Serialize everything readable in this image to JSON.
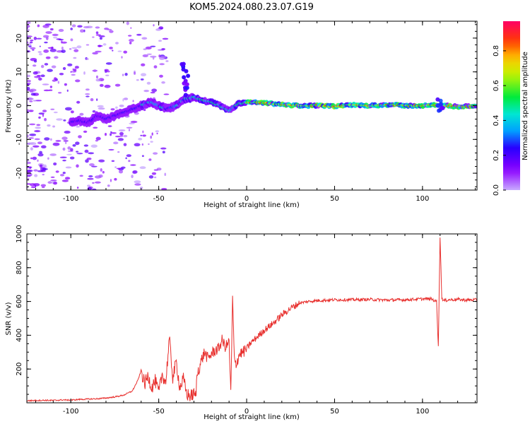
{
  "figure": {
    "title": "KOM5.2024.080.23.07.G19"
  },
  "colors": {
    "snr_line": "#e8302e",
    "axis": "#000000",
    "background": "#ffffff"
  },
  "chart_data": [
    {
      "type": "heatmap",
      "name": "spectrogram",
      "xlabel": "Height of straight line (km)",
      "ylabel": "Frequency (Hz)",
      "xlim": [
        -125,
        131
      ],
      "ylim": [
        -25,
        25
      ],
      "x_ticks": [
        -100,
        -50,
        0,
        50,
        100
      ],
      "y_ticks": [
        -20,
        -10,
        0,
        10,
        20
      ],
      "colorbar": {
        "label": "Normalized spectral amplitude",
        "range": [
          0,
          0.97
        ],
        "ticks": [
          0.0,
          0.2,
          0.4,
          0.6,
          0.8
        ],
        "colormap": "gist_rainbow_r"
      },
      "ridge": [
        {
          "x": -100,
          "y": -5
        },
        {
          "x": -95,
          "y": -4.5
        },
        {
          "x": -90,
          "y": -5
        },
        {
          "x": -85,
          "y": -3
        },
        {
          "x": -80,
          "y": -4
        },
        {
          "x": -75,
          "y": -3
        },
        {
          "x": -70,
          "y": -2
        },
        {
          "x": -65,
          "y": -1
        },
        {
          "x": -60,
          "y": 0
        },
        {
          "x": -55,
          "y": 1
        },
        {
          "x": -50,
          "y": 0
        },
        {
          "x": -45,
          "y": -1
        },
        {
          "x": -40,
          "y": 0
        },
        {
          "x": -35,
          "y": 2
        },
        {
          "x": -30,
          "y": 2.5
        },
        {
          "x": -25,
          "y": 1.5
        },
        {
          "x": -20,
          "y": 1
        },
        {
          "x": -15,
          "y": 0
        },
        {
          "x": -10,
          "y": -1.5
        },
        {
          "x": -5,
          "y": 0.5
        },
        {
          "x": 0,
          "y": 1
        },
        {
          "x": 10,
          "y": 0.8
        },
        {
          "x": 20,
          "y": 0.3
        },
        {
          "x": 30,
          "y": 0
        },
        {
          "x": 40,
          "y": 0
        },
        {
          "x": 50,
          "y": -0.2
        },
        {
          "x": 60,
          "y": 0.2
        },
        {
          "x": 70,
          "y": 0
        },
        {
          "x": 80,
          "y": 0.3
        },
        {
          "x": 90,
          "y": 0
        },
        {
          "x": 100,
          "y": 0
        },
        {
          "x": 110,
          "y": 0.2
        },
        {
          "x": 120,
          "y": -0.3
        },
        {
          "x": 131,
          "y": 0
        }
      ]
    },
    {
      "type": "line",
      "name": "snr",
      "xlabel": "Height of straight line (km)",
      "ylabel": "SNR (v/v)",
      "xlim": [
        -125,
        131
      ],
      "ylim": [
        0,
        1000
      ],
      "x_ticks": [
        -100,
        -50,
        0,
        50,
        100
      ],
      "y_ticks": [
        200,
        400,
        600,
        800,
        1000
      ],
      "series": [
        {
          "x": [
            -125,
            -120,
            -115,
            -110,
            -105,
            -100,
            -95,
            -90,
            -85,
            -80,
            -75,
            -70,
            -65,
            -62,
            -60,
            -58,
            -56,
            -54,
            -52,
            -50,
            -48,
            -46,
            -44,
            -42,
            -40,
            -38,
            -36,
            -34,
            -32,
            -30,
            -29,
            -28,
            -26,
            -24,
            -22,
            -20,
            -18,
            -16,
            -14,
            -12,
            -10,
            -9,
            -8,
            -7,
            -6,
            -4,
            -2,
            0,
            2,
            5,
            10,
            15,
            20,
            25,
            30,
            35,
            40,
            50,
            60,
            70,
            80,
            90,
            100,
            105,
            108,
            109,
            110,
            111,
            112,
            115,
            120,
            125,
            131
          ],
          "y": [
            12,
            14,
            15,
            14,
            17,
            16,
            20,
            22,
            24,
            28,
            35,
            45,
            70,
            130,
            190,
            110,
            160,
            90,
            130,
            60,
            170,
            120,
            380,
            150,
            240,
            90,
            140,
            50,
            40,
            50,
            40,
            180,
            240,
            300,
            260,
            290,
            310,
            320,
            370,
            330,
            360,
            50,
            620,
            250,
            230,
            290,
            300,
            320,
            350,
            380,
            430,
            470,
            520,
            560,
            590,
            600,
            605,
            610,
            610,
            612,
            608,
            610,
            615,
            615,
            600,
            340,
            980,
            620,
            605,
            610,
            612,
            608,
            610
          ]
        }
      ]
    }
  ]
}
